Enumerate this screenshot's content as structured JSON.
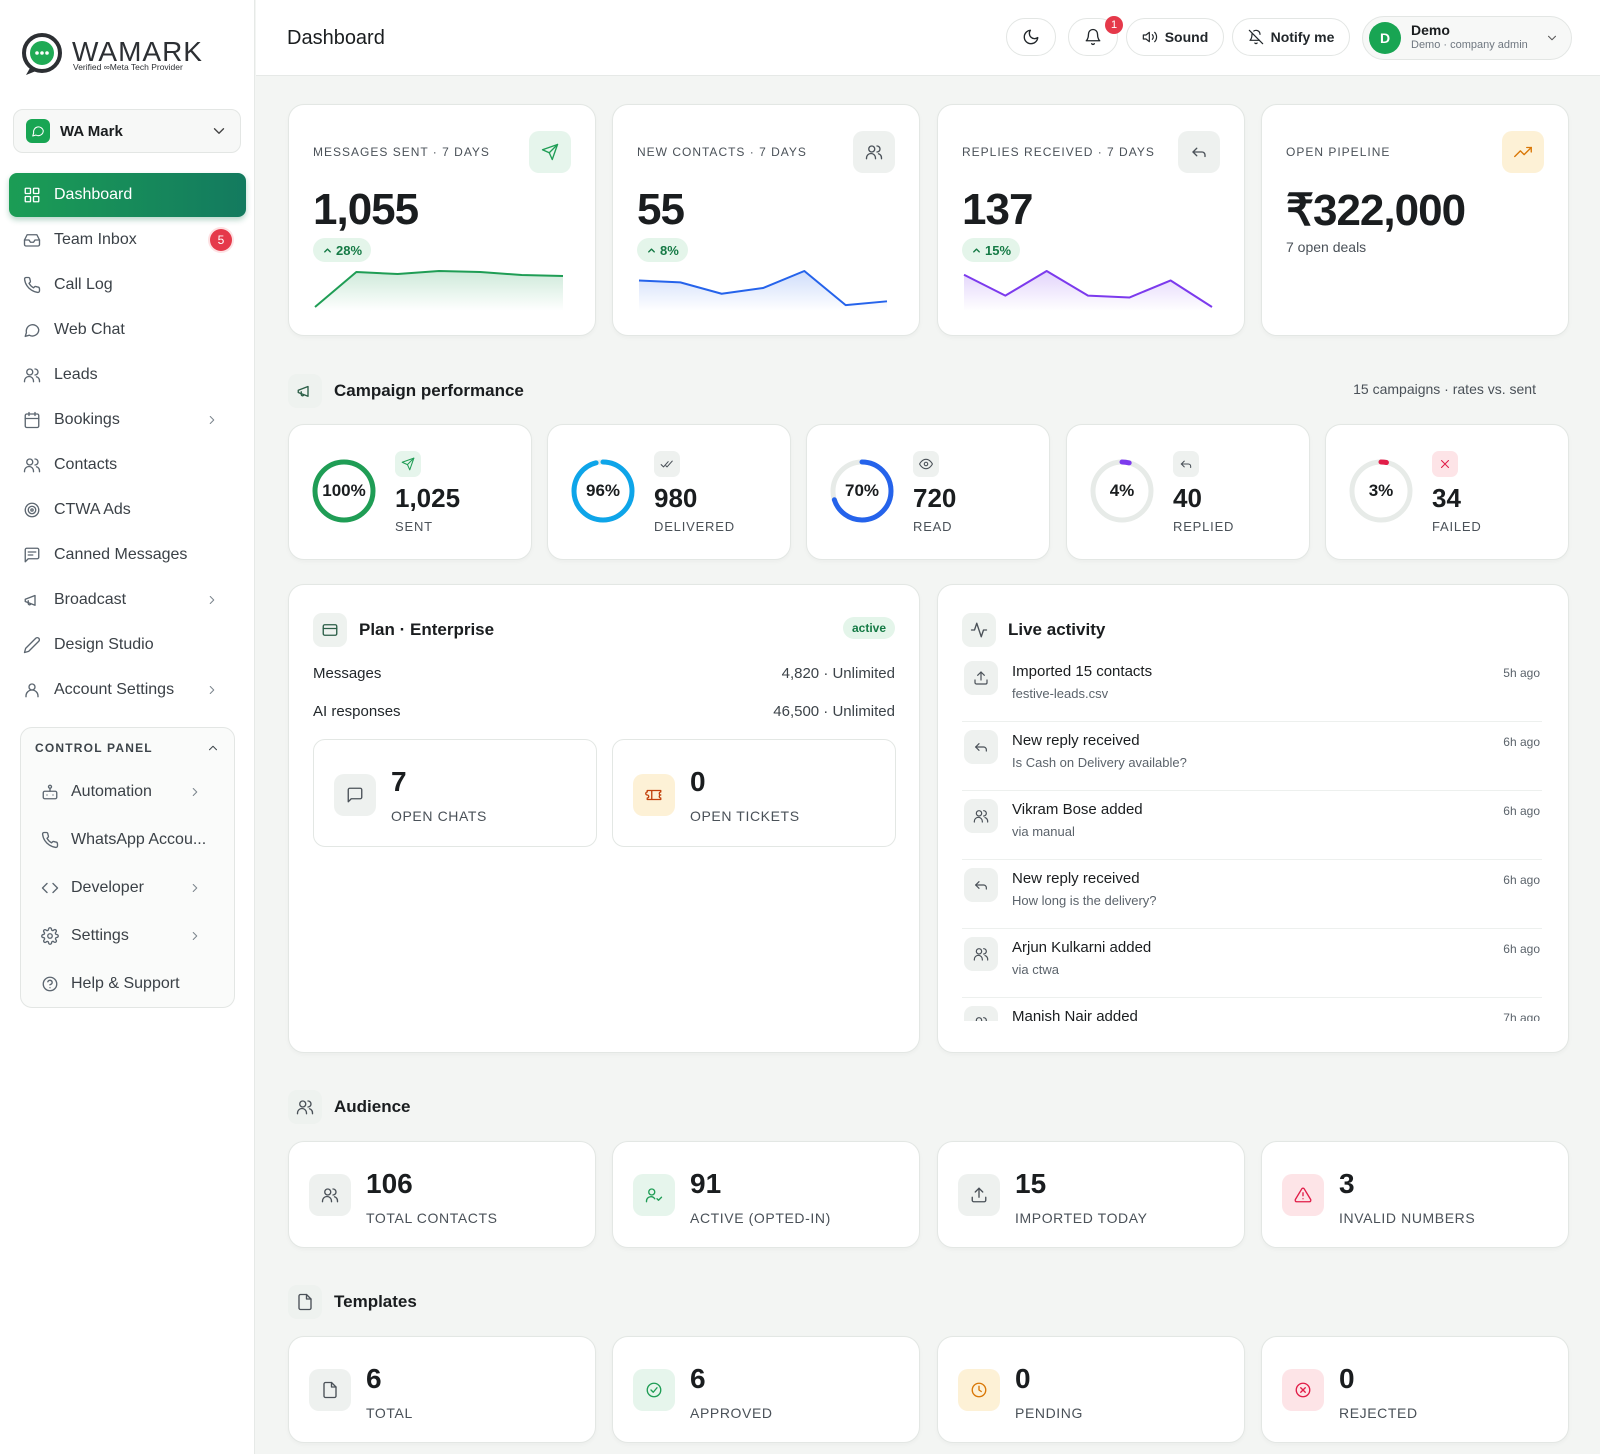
{
  "brand": {
    "name": "WAMARK",
    "tagline": "Verified ∞Meta Tech Provider"
  },
  "workspace": {
    "name": "WA Mark"
  },
  "nav": [
    {
      "label": "Dashboard",
      "icon": "grid-icon",
      "active": true
    },
    {
      "label": "Team Inbox",
      "icon": "inbox-icon",
      "badge": "5"
    },
    {
      "label": "Call Log",
      "icon": "phone-icon"
    },
    {
      "label": "Web Chat",
      "icon": "chat-icon"
    },
    {
      "label": "Leads",
      "icon": "users-icon"
    },
    {
      "label": "Bookings",
      "icon": "calendar-icon",
      "arrow": true
    },
    {
      "label": "Contacts",
      "icon": "users-icon"
    },
    {
      "label": "CTWA Ads",
      "icon": "target-icon"
    },
    {
      "label": "Canned Messages",
      "icon": "message-square-icon"
    },
    {
      "label": "Broadcast",
      "icon": "megaphone-icon",
      "arrow": true
    },
    {
      "label": "Design Studio",
      "icon": "pen-icon"
    },
    {
      "label": "Account Settings",
      "icon": "user-icon",
      "arrow": true
    }
  ],
  "control_panel": {
    "title": "CONTROL PANEL",
    "items": [
      {
        "label": "Automation",
        "icon": "robot-icon",
        "arrow": true
      },
      {
        "label": "WhatsApp Accou...",
        "icon": "phone-icon"
      },
      {
        "label": "Developer",
        "icon": "code-icon",
        "arrow": true
      },
      {
        "label": "Settings",
        "icon": "gear-icon",
        "arrow": true
      },
      {
        "label": "Help & Support",
        "icon": "help-circle-icon"
      }
    ]
  },
  "header": {
    "title": "Dashboard",
    "notifications": "1",
    "sound_label": "Sound",
    "notify_label": "Notify me",
    "user": {
      "initial": "D",
      "name": "Demo",
      "role": "Demo · company admin"
    }
  },
  "kpis": [
    {
      "label": "MESSAGES SENT · 7 DAYS",
      "value": "1,055",
      "change": "28%",
      "icon": "send-icon",
      "color": "#1f9d55",
      "spark": [
        0,
        35,
        33,
        36,
        35,
        32,
        31
      ]
    },
    {
      "label": "NEW CONTACTS · 7 DAYS",
      "value": "55",
      "change": "8%",
      "icon": "users-icon",
      "color": "#2563eb",
      "spark": [
        28,
        26,
        14,
        20,
        38,
        2,
        6
      ]
    },
    {
      "label": "REPLIES RECEIVED · 7 DAYS",
      "value": "137",
      "change": "15%",
      "icon": "reply-icon",
      "color": "#7c3aed",
      "spark": [
        34,
        12,
        38,
        12,
        10,
        28,
        0
      ]
    },
    {
      "label": "OPEN PIPELINE",
      "value": "₹322,000",
      "sub": "7 open deals",
      "icon": "trending-up-icon",
      "color": "#d97706"
    }
  ],
  "campaign": {
    "title": "Campaign performance",
    "meta": "15 campaigns · rates vs. sent",
    "items": [
      {
        "pct_label": "100%",
        "pct": 100,
        "value": "1,025",
        "label": "SENT",
        "color": "#1f9d55",
        "icon": "send-icon",
        "icon_bg": "#e6f5ec"
      },
      {
        "pct_label": "96%",
        "pct": 96,
        "value": "980",
        "label": "DELIVERED",
        "color": "#0ea5e9",
        "icon": "double-check-icon",
        "icon_bg": "#eef1ef"
      },
      {
        "pct_label": "70%",
        "pct": 70,
        "value": "720",
        "label": "READ",
        "color": "#2563eb",
        "icon": "eye-icon",
        "icon_bg": "#eef1ef"
      },
      {
        "pct_label": "4%",
        "pct": 4,
        "value": "40",
        "label": "REPLIED",
        "color": "#7c3aed",
        "icon": "reply-icon",
        "icon_bg": "#eef1ef"
      },
      {
        "pct_label": "3%",
        "pct": 3,
        "value": "34",
        "label": "FAILED",
        "color": "#e11d48",
        "icon": "x-icon",
        "icon_bg": "#fde4e7"
      }
    ]
  },
  "plan": {
    "title": "Plan · Enterprise",
    "status": "active",
    "rows": [
      {
        "label": "Messages",
        "value": "4,820 · Unlimited"
      },
      {
        "label": "AI responses",
        "value": "46,500 · Unlimited"
      }
    ],
    "open_chats": {
      "value": "7",
      "label": "OPEN CHATS"
    },
    "open_tickets": {
      "value": "0",
      "label": "OPEN TICKETS"
    }
  },
  "activity": {
    "title": "Live activity",
    "items": [
      {
        "title": "Imported 15 contacts",
        "sub": "festive-leads.csv",
        "time": "5h ago",
        "icon": "upload-icon"
      },
      {
        "title": "New reply received",
        "sub": "Is Cash on Delivery available?",
        "time": "6h ago",
        "icon": "reply-icon"
      },
      {
        "title": "Vikram Bose added",
        "sub": "via manual",
        "time": "6h ago",
        "icon": "users-icon"
      },
      {
        "title": "New reply received",
        "sub": "How long is the delivery?",
        "time": "6h ago",
        "icon": "reply-icon"
      },
      {
        "title": "Arjun Kulkarni added",
        "sub": "via ctwa",
        "time": "6h ago",
        "icon": "users-icon"
      },
      {
        "title": "Manish Nair added",
        "sub": "",
        "time": "7h ago",
        "icon": "users-icon"
      }
    ]
  },
  "audience": {
    "title": "Audience",
    "items": [
      {
        "value": "106",
        "label": "TOTAL CONTACTS",
        "icon": "users-icon",
        "bg": "#eef1ef",
        "fg": "#4a5158"
      },
      {
        "value": "91",
        "label": "ACTIVE (OPTED-IN)",
        "icon": "user-check-icon",
        "bg": "#e6f5ec",
        "fg": "#1f9d55"
      },
      {
        "value": "15",
        "label": "IMPORTED TODAY",
        "icon": "upload-icon",
        "bg": "#eef1ef",
        "fg": "#4a5158"
      },
      {
        "value": "3",
        "label": "INVALID NUMBERS",
        "icon": "alert-triangle-icon",
        "bg": "#fde4e7",
        "fg": "#e11d48"
      }
    ]
  },
  "templates": {
    "title": "Templates",
    "items": [
      {
        "value": "6",
        "label": "TOTAL",
        "icon": "file-icon",
        "bg": "#eef1ef",
        "fg": "#4a5158"
      },
      {
        "value": "6",
        "label": "APPROVED",
        "icon": "check-circle-icon",
        "bg": "#e6f5ec",
        "fg": "#1f9d55"
      },
      {
        "value": "0",
        "label": "PENDING",
        "icon": "clock-icon",
        "bg": "#fdf1d6",
        "fg": "#d97706"
      },
      {
        "value": "0",
        "label": "REJECTED",
        "icon": "x-circle-icon",
        "bg": "#fde4e7",
        "fg": "#e11d48"
      }
    ]
  }
}
